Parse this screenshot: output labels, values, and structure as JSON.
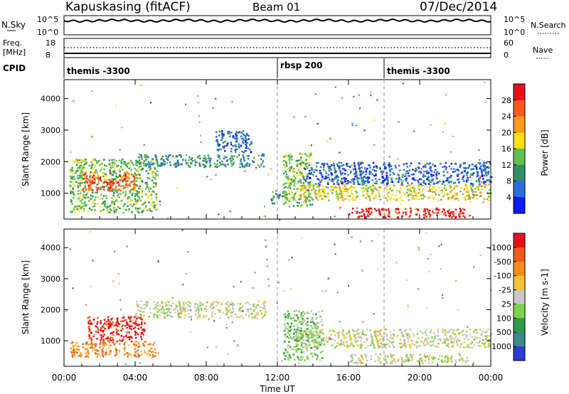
{
  "header": {
    "station": "Kapuskasing (fitACF)",
    "beam": "Beam 01",
    "date": "07/Dec/2014"
  },
  "noise_panel": {
    "left_label": "N.Sky",
    "left_ticks": [
      "10^5",
      "10^0"
    ],
    "right_ticks": [
      "10^5",
      "10^0"
    ],
    "right_label": "N.Search"
  },
  "freq_panel": {
    "left_label_1": "Freq.",
    "left_label_2": "[MHz]",
    "left_ticks": [
      "18",
      "8"
    ],
    "right_ticks": [
      "60",
      "0"
    ],
    "right_label": "Nave"
  },
  "cpid": {
    "label": "CPID",
    "segments": [
      {
        "start_hour": 0.0,
        "name": "themis -3300"
      },
      {
        "start_hour": 12.0,
        "name": "rbsp 200"
      },
      {
        "start_hour": 18.0,
        "name": "themis -3300"
      }
    ]
  },
  "x_axis": {
    "label": "Time UT",
    "range_hours": [
      0,
      24
    ],
    "tick_labels": [
      "00:00",
      "04:00",
      "08:00",
      "12:00",
      "16:00",
      "20:00",
      "00:00"
    ]
  },
  "chart_data": [
    {
      "type": "heatmap",
      "ylabel": "Slant Range [km]",
      "ylim": [
        180,
        4600
      ],
      "y_ticks": [
        1000,
        2000,
        3000,
        4000
      ],
      "colorbar": {
        "label": "Power [dB]",
        "ticks": [
          "4",
          "8",
          "12",
          "16",
          "20",
          "24",
          "28"
        ],
        "colors": [
          "#0a1df5",
          "#2d6be0",
          "#2f8f62",
          "#5fbf4f",
          "#ffe01a",
          "#ff9a1a",
          "#ff5a1a",
          "#e8101a"
        ]
      },
      "regions": [
        {
          "t": [
            0.3,
            5.2
          ],
          "r": [
            400,
            2100
          ],
          "level": 3
        },
        {
          "t": [
            1.0,
            4.0
          ],
          "r": [
            1100,
            1700
          ],
          "level": 6
        },
        {
          "t": [
            4.0,
            11.3
          ],
          "r": [
            1850,
            2250
          ],
          "level": 2
        },
        {
          "t": [
            8.5,
            10.5
          ],
          "r": [
            2300,
            3000
          ],
          "level": 1
        },
        {
          "t": [
            11.6,
            12.4
          ],
          "r": [
            700,
            1100
          ],
          "level": 2
        },
        {
          "t": [
            12.3,
            14.0
          ],
          "r": [
            600,
            2300
          ],
          "level": 3
        },
        {
          "t": [
            13.0,
            24.0
          ],
          "r": [
            800,
            1300
          ],
          "level": 4
        },
        {
          "t": [
            16.0,
            22.8
          ],
          "r": [
            250,
            550
          ],
          "level": 7
        },
        {
          "t": [
            13.5,
            24.0
          ],
          "r": [
            1300,
            2000
          ],
          "level": 1
        }
      ]
    },
    {
      "type": "heatmap",
      "ylabel": "Slant Range [km]",
      "ylim": [
        180,
        4600
      ],
      "y_ticks": [
        1000,
        2000,
        3000,
        4000
      ],
      "colorbar": {
        "label": "Velocity [m s-1]",
        "ticks": [
          "1000",
          "500",
          "100",
          "25",
          "-25",
          "-100",
          "-500",
          "-1000"
        ],
        "colors": [
          "#2a3bd0",
          "#3a8a8a",
          "#2e9a4a",
          "#7fd24a",
          "#c8c8c8",
          "#f5c23a",
          "#f58a1a",
          "#f05a1a",
          "#e8101a"
        ]
      },
      "regions": [
        {
          "t": [
            4.0,
            11.3
          ],
          "r": [
            1750,
            2300
          ],
          "level": 4
        },
        {
          "t": [
            1.3,
            4.5
          ],
          "r": [
            1000,
            1800
          ],
          "level": 8
        },
        {
          "t": [
            0.3,
            5.2
          ],
          "r": [
            500,
            1000
          ],
          "level": 6
        },
        {
          "t": [
            13.0,
            24.0
          ],
          "r": [
            800,
            1400
          ],
          "level": 4
        },
        {
          "t": [
            16.0,
            22.8
          ],
          "r": [
            300,
            600
          ],
          "level": 4
        },
        {
          "t": [
            12.3,
            14.5
          ],
          "r": [
            400,
            2000
          ],
          "level": 3
        }
      ]
    }
  ]
}
